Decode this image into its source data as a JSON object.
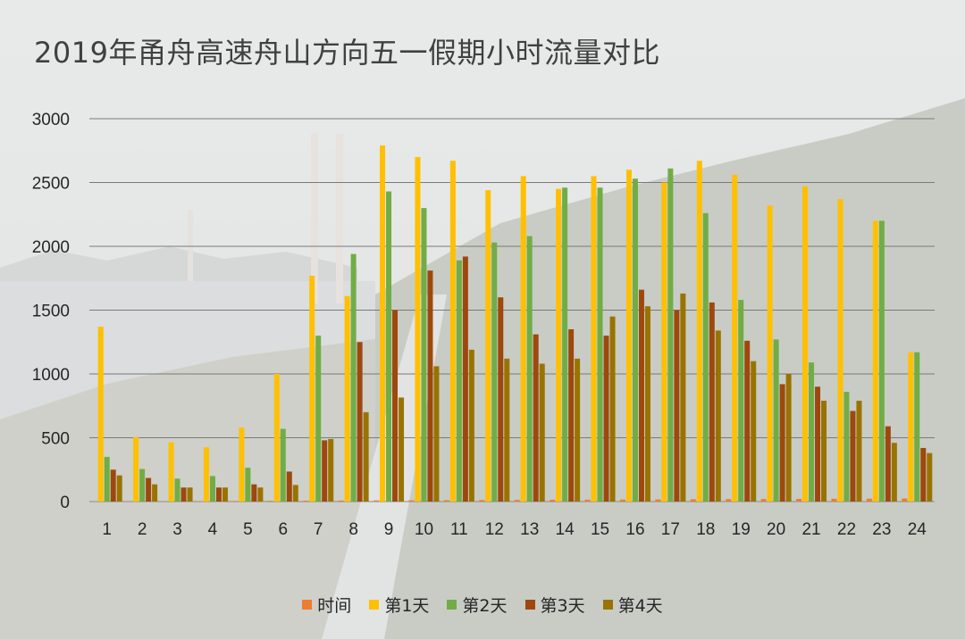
{
  "chart_data": {
    "type": "bar",
    "title": "2019年甬舟高速舟山方向五一假期小时流量对比",
    "xlabel": "",
    "ylabel": "",
    "ylim": [
      0,
      3000
    ],
    "yticks": [
      "0",
      "500",
      "1000",
      "1500",
      "2000",
      "2500",
      "3000"
    ],
    "grid": true,
    "legend_position": "bottom",
    "categories": [
      "1",
      "2",
      "3",
      "4",
      "5",
      "6",
      "7",
      "8",
      "9",
      "10",
      "11",
      "12",
      "13",
      "14",
      "15",
      "16",
      "17",
      "18",
      "19",
      "20",
      "21",
      "22",
      "23",
      "24"
    ],
    "series": [
      {
        "name": "时间",
        "color": "#ed7d31",
        "values": [
          1,
          2,
          3,
          4,
          5,
          6,
          7,
          8,
          9,
          10,
          11,
          12,
          13,
          14,
          15,
          16,
          17,
          18,
          19,
          20,
          21,
          22,
          23,
          24
        ]
      },
      {
        "name": "第1天",
        "color": "#ffc000",
        "values": [
          1370,
          505,
          465,
          425,
          580,
          1000,
          1770,
          1610,
          2790,
          2700,
          2670,
          2440,
          2550,
          2450,
          2550,
          2600,
          2500,
          2670,
          2560,
          2320,
          2470,
          2370,
          2200,
          1170
        ]
      },
      {
        "name": "第2天",
        "color": "#70ad47",
        "values": [
          350,
          255,
          180,
          200,
          265,
          570,
          1300,
          1940,
          2430,
          2300,
          1890,
          2030,
          2080,
          2460,
          2460,
          2530,
          2610,
          2260,
          1580,
          1270,
          1090,
          860,
          2200,
          1170
        ]
      },
      {
        "name": "第3天",
        "color": "#9e480e",
        "values": [
          250,
          185,
          110,
          110,
          135,
          235,
          480,
          1250,
          1500,
          1810,
          1920,
          1600,
          1310,
          1350,
          1300,
          1660,
          1500,
          1560,
          1260,
          920,
          900,
          710,
          590,
          420
        ]
      },
      {
        "name": "第4天",
        "color": "#997300",
        "values": [
          205,
          135,
          110,
          110,
          110,
          130,
          490,
          700,
          815,
          1060,
          1190,
          1120,
          1080,
          1120,
          1450,
          1530,
          1630,
          1340,
          1100,
          1000,
          790,
          790,
          460,
          380
        ]
      }
    ]
  }
}
